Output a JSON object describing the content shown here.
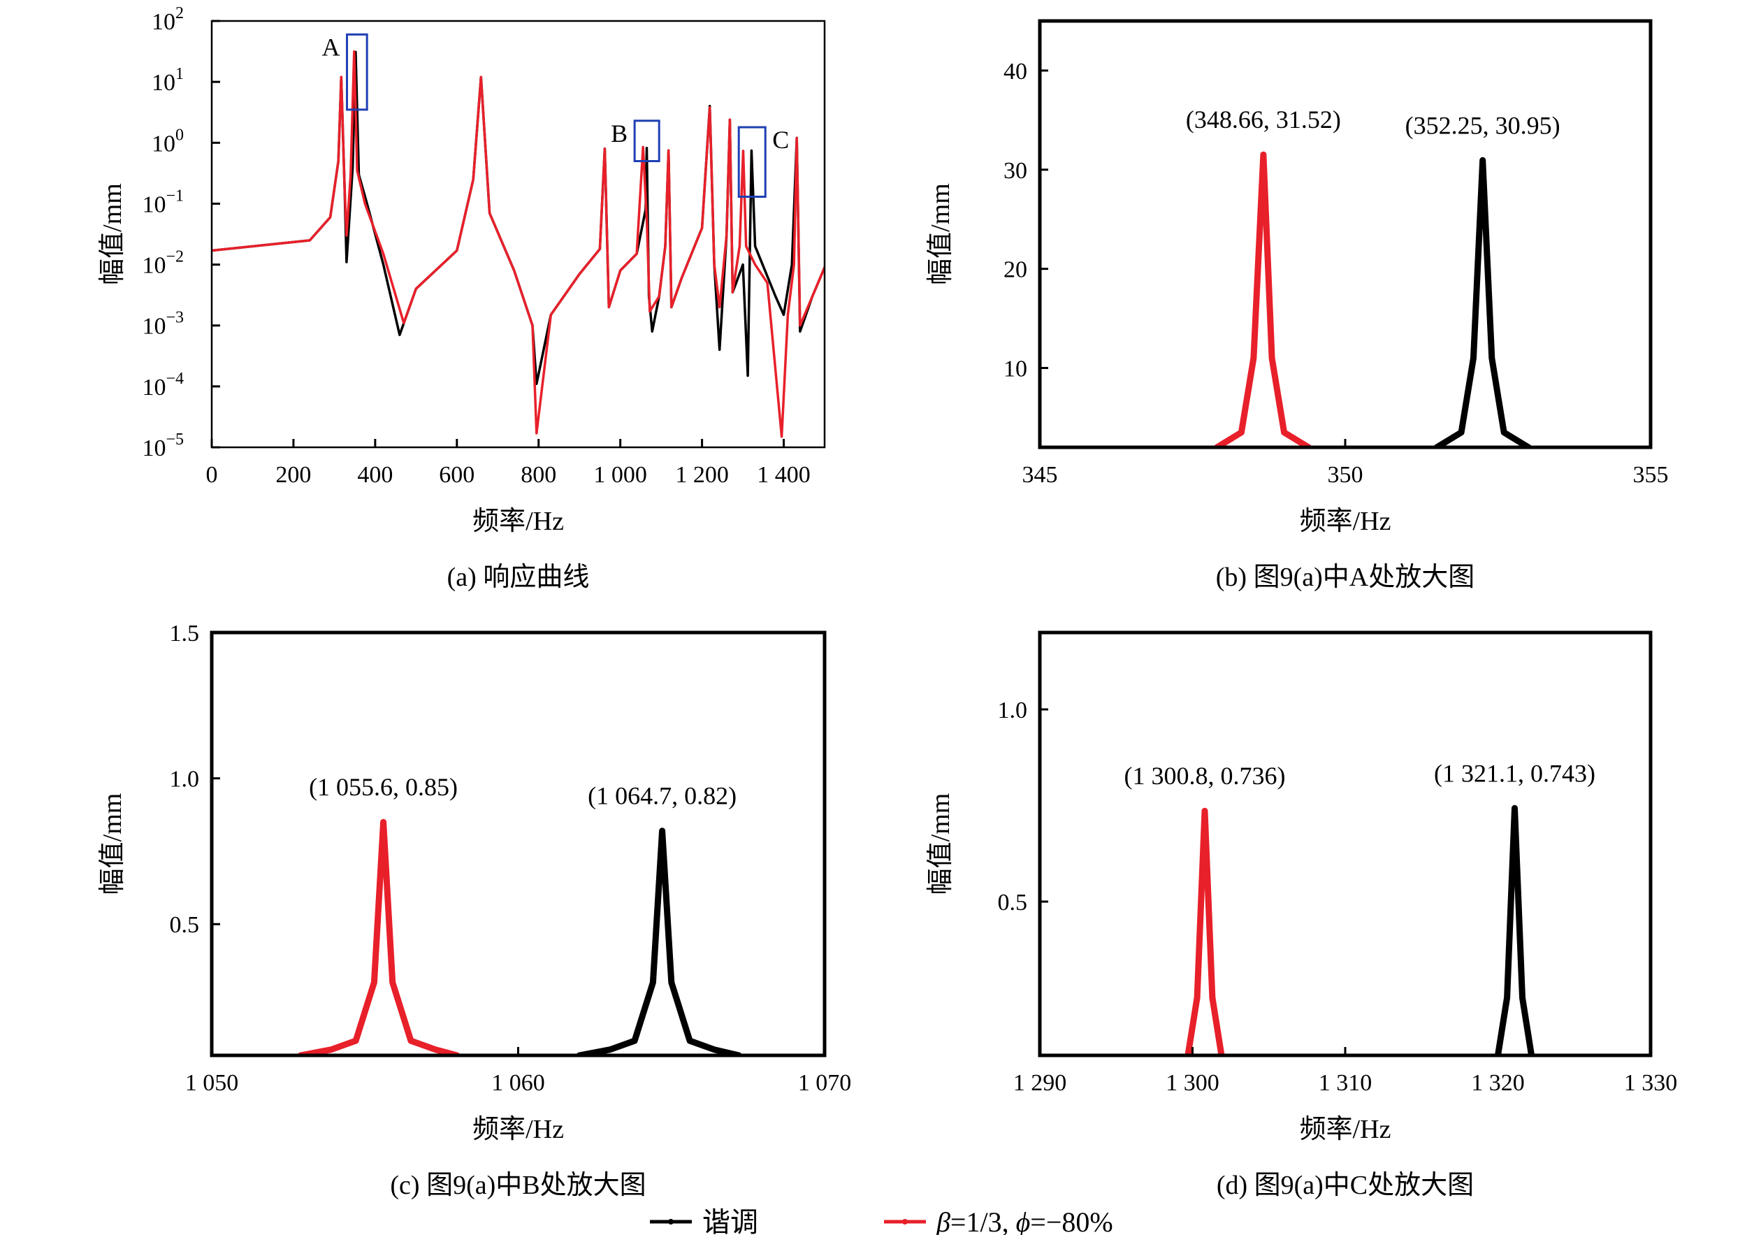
{
  "colors": {
    "tuned": "#000000",
    "mistuned": "#e8202a",
    "box": "#1f3fb4"
  },
  "legend": {
    "items": [
      {
        "label": "谐调",
        "color": "#000000"
      },
      {
        "label_beta": "β",
        "label_mid": "=1/3, ",
        "label_phi": "ϕ",
        "label_end": "=−80%",
        "color": "#e8202a"
      }
    ]
  },
  "chart_data": [
    {
      "id": "a",
      "type": "line",
      "caption": "(a) 响应曲线",
      "xlabel": "频率/Hz",
      "ylabel": "幅值/mm",
      "xlim": [
        0,
        1500
      ],
      "ylim": [
        1e-05,
        100
      ],
      "yscale": "log",
      "xticks": [
        0,
        200,
        400,
        600,
        800,
        1000,
        1200,
        1400
      ],
      "xtick_labels": [
        "0",
        "200",
        "400",
        "600",
        "800",
        "1 000",
        "1 200",
        "1 400"
      ],
      "yticks": [
        100,
        10,
        1,
        0.1,
        0.01,
        0.001,
        0.0001,
        1e-05
      ],
      "ytick_bases": [
        "10",
        "10",
        "10",
        "10",
        "10",
        "10",
        "10",
        "10"
      ],
      "ytick_exps": [
        "2",
        "1",
        "0",
        "−1",
        "−2",
        "−3",
        "−4",
        "−5"
      ],
      "boxes": [
        {
          "label": "A",
          "x": [
            331,
            380
          ],
          "y": [
            3.5,
            60
          ]
        },
        {
          "label": "B",
          "x": [
            1035,
            1095
          ],
          "y": [
            0.5,
            2.3
          ]
        },
        {
          "label": "C",
          "x": [
            1290,
            1355
          ],
          "y": [
            0.13,
            1.8
          ]
        }
      ],
      "series": [
        {
          "name": "谐调",
          "color": "#000000",
          "x": [
            0,
            240,
            290,
            310,
            317,
            325,
            330,
            345,
            352.25,
            360,
            380,
            420,
            460,
            500,
            600,
            640,
            659,
            680,
            740,
            785,
            795,
            830,
            900,
            950,
            962,
            972,
            1000,
            1040,
            1062,
            1064.7,
            1070,
            1078,
            1095,
            1110,
            1118,
            1125,
            1150,
            1200,
            1219,
            1230,
            1243,
            1260,
            1268,
            1275,
            1300,
            1312,
            1321.1,
            1330,
            1380,
            1400,
            1420,
            1432,
            1440,
            1470,
            1500
          ],
          "y": [
            0.017,
            0.025,
            0.06,
            0.5,
            12,
            0.2,
            0.011,
            0.4,
            30.95,
            0.3,
            0.1,
            0.01,
            0.0007,
            0.004,
            0.017,
            0.25,
            12,
            0.07,
            0.008,
            0.001,
            0.00011,
            0.0015,
            0.007,
            0.018,
            0.8,
            0.002,
            0.008,
            0.015,
            0.08,
            0.82,
            0.003,
            0.0008,
            0.003,
            0.02,
            0.75,
            0.002,
            0.006,
            0.04,
            4,
            0.01,
            0.0004,
            0.03,
            2.4,
            0.0035,
            0.01,
            0.00015,
            0.743,
            0.02,
            0.003,
            0.0015,
            0.01,
            1.2,
            0.0008,
            0.003,
            0.009
          ]
        },
        {
          "name": "β=1/3, ϕ=−80%",
          "color": "#e8202a",
          "x": [
            0,
            240,
            290,
            310,
            317,
            325,
            330,
            340,
            348.66,
            356,
            375,
            420,
            470,
            500,
            600,
            640,
            659,
            680,
            740,
            785,
            795,
            830,
            900,
            950,
            962,
            972,
            1000,
            1040,
            1055.6,
            1065,
            1072,
            1095,
            1110,
            1118,
            1125,
            1150,
            1200,
            1219,
            1230,
            1243,
            1260,
            1268,
            1275,
            1292,
            1300.8,
            1308,
            1330,
            1360,
            1395,
            1410,
            1425,
            1432,
            1440,
            1470,
            1500
          ],
          "y": [
            0.017,
            0.025,
            0.06,
            0.5,
            12,
            0.2,
            0.03,
            0.3,
            31.52,
            0.35,
            0.1,
            0.015,
            0.0011,
            0.004,
            0.017,
            0.25,
            12,
            0.07,
            0.008,
            0.001,
            1.7e-05,
            0.0015,
            0.007,
            0.018,
            0.8,
            0.002,
            0.008,
            0.015,
            0.85,
            0.05,
            0.0017,
            0.003,
            0.02,
            0.75,
            0.002,
            0.006,
            0.04,
            3.8,
            0.01,
            0.002,
            0.03,
            2.4,
            0.0035,
            0.02,
            0.736,
            0.02,
            0.01,
            0.005,
            1.5e-05,
            0.0015,
            0.01,
            1.2,
            0.001,
            0.003,
            0.009
          ]
        }
      ]
    },
    {
      "id": "b",
      "type": "line",
      "caption": "(b) 图9(a)中A处放大图",
      "xlabel": "频率/Hz",
      "ylabel": "幅值/mm",
      "xlim": [
        345,
        355
      ],
      "ylim": [
        2,
        45
      ],
      "xticks": [
        345,
        350,
        355
      ],
      "xtick_labels": [
        "345",
        "350",
        "355"
      ],
      "yticks": [
        10,
        20,
        30,
        40
      ],
      "ytick_labels": [
        "10",
        "20",
        "30",
        "40"
      ],
      "annotations": [
        {
          "text": "(348.66, 31.52)",
          "x": 348.66,
          "y": 31.52
        },
        {
          "text": "(352.25, 30.95)",
          "x": 352.25,
          "y": 30.95
        }
      ],
      "series": [
        {
          "name": "谐调",
          "color": "#000000",
          "x": [
            351.5,
            351.9,
            352.1,
            352.25,
            352.4,
            352.6,
            353.0
          ],
          "y": [
            2,
            3.5,
            11,
            30.95,
            11,
            3.5,
            2
          ]
        },
        {
          "name": "β=1/3, ϕ=−80%",
          "color": "#e8202a",
          "x": [
            347.9,
            348.3,
            348.5,
            348.66,
            348.8,
            349.0,
            349.4
          ],
          "y": [
            2,
            3.5,
            11,
            31.52,
            11,
            3.5,
            2
          ]
        }
      ]
    },
    {
      "id": "c",
      "type": "line",
      "caption": "(c) 图9(a)中B处放大图",
      "xlabel": "频率/Hz",
      "ylabel": "幅值/mm",
      "xlim": [
        1050,
        1070
      ],
      "ylim": [
        0.05,
        1.5
      ],
      "xticks": [
        1050,
        1060,
        1070
      ],
      "xtick_labels": [
        "1 050",
        "1 060",
        "1 070"
      ],
      "yticks": [
        0.5,
        1.0,
        1.5
      ],
      "ytick_labels": [
        "0.5",
        "1.0",
        "1.5"
      ],
      "annotations": [
        {
          "text": "(1 055.6, 0.85)",
          "x": 1055.6,
          "y": 0.85
        },
        {
          "text": "(1 064.7, 0.82)",
          "x": 1064.7,
          "y": 0.82
        }
      ],
      "series": [
        {
          "name": "谐调",
          "color": "#000000",
          "x": [
            1062.0,
            1063.0,
            1063.8,
            1064.4,
            1064.7,
            1065.0,
            1065.6,
            1066.4,
            1067.2
          ],
          "y": [
            0.05,
            0.07,
            0.1,
            0.3,
            0.82,
            0.3,
            0.1,
            0.07,
            0.05
          ]
        },
        {
          "name": "β=1/3, ϕ=−80%",
          "color": "#e8202a",
          "x": [
            1052.9,
            1053.9,
            1054.7,
            1055.3,
            1055.6,
            1055.9,
            1056.5,
            1057.3,
            1058.0
          ],
          "y": [
            0.05,
            0.07,
            0.1,
            0.3,
            0.85,
            0.3,
            0.1,
            0.07,
            0.05
          ]
        }
      ]
    },
    {
      "id": "d",
      "type": "line",
      "caption": "(d) 图9(a)中C处放大图",
      "xlabel": "频率/Hz",
      "ylabel": "幅值/mm",
      "xlim": [
        1290,
        1330
      ],
      "ylim": [
        0.1,
        1.2
      ],
      "xticks": [
        1290,
        1300,
        1310,
        1320,
        1330
      ],
      "xtick_labels": [
        "1 290",
        "1 300",
        "1 310",
        "1 320",
        "1 330"
      ],
      "yticks": [
        0.5,
        1.0
      ],
      "ytick_labels": [
        "0.5",
        "1.0"
      ],
      "annotations": [
        {
          "text": "(1 300.8, 0.736)",
          "x": 1300.8,
          "y": 0.736
        },
        {
          "text": "(1 321.1, 0.743)",
          "x": 1321.1,
          "y": 0.743
        }
      ],
      "series": [
        {
          "name": "谐调",
          "color": "#000000",
          "x": [
            1320.0,
            1320.6,
            1321.1,
            1321.6,
            1322.2
          ],
          "y": [
            0.1,
            0.25,
            0.743,
            0.25,
            0.1
          ]
        },
        {
          "name": "β=1/3, ϕ=−80%",
          "color": "#e8202a",
          "x": [
            1299.7,
            1300.3,
            1300.8,
            1301.3,
            1301.9
          ],
          "y": [
            0.1,
            0.25,
            0.736,
            0.25,
            0.1
          ]
        }
      ]
    }
  ]
}
